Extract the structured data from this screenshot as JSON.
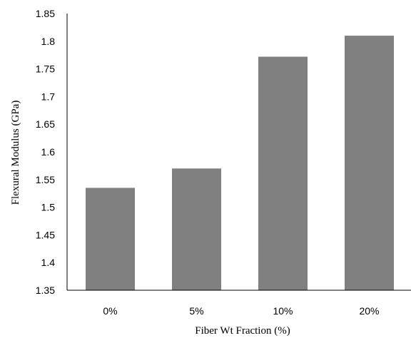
{
  "chart_data": {
    "type": "bar",
    "title": "",
    "categories": [
      "0%",
      "5%",
      "10%",
      "20%"
    ],
    "values": [
      1.535,
      1.57,
      1.772,
      1.81
    ],
    "xlabel": "Fiber Wt Fraction (%)",
    "ylabel": "Flexural  Modulus (GPa)",
    "ylim": [
      1.35,
      1.85
    ],
    "yticks": [
      "1.35",
      "1.4",
      "1.45",
      "1.5",
      "1.55",
      "1.6",
      "1.65",
      "1.7",
      "1.75",
      "1.8",
      "1.85"
    ],
    "grid": false,
    "legend": "none",
    "colors": {
      "bar": "#808080",
      "axis": "#000000"
    }
  }
}
